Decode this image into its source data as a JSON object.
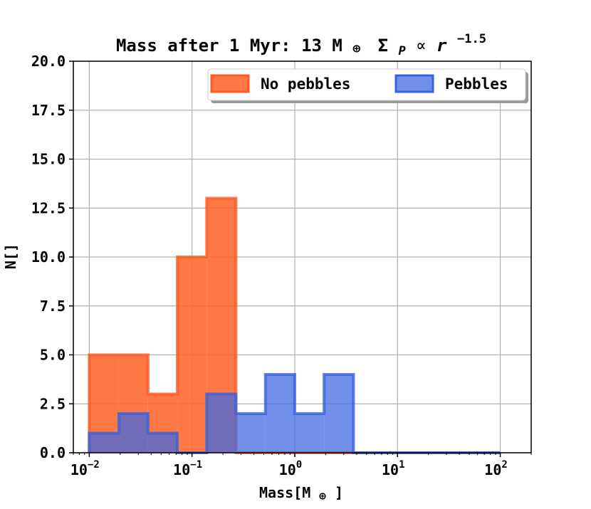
{
  "chart_data": {
    "type": "histogram",
    "title_prefix": "Mass after 1 Myr: 13 M",
    "title_sym": "⊕",
    "title_sigma": "Σ",
    "title_sub": "P",
    "title_prop": "∝",
    "title_r": "r",
    "title_exp": "−1.5",
    "xlabel_prefix": "Mass[M",
    "xlabel_sym": "⊕",
    "xlabel_suffix": "]",
    "ylabel": "N[]",
    "xscale": "log",
    "xlim": [
      0.007,
      200
    ],
    "ylim": [
      0,
      20
    ],
    "yticks": [
      "0.0",
      "2.5",
      "5.0",
      "7.5",
      "10.0",
      "12.5",
      "15.0",
      "17.5",
      "20.0"
    ],
    "xticks": [
      {
        "base": "10",
        "exp": "−2",
        "value": 0.01
      },
      {
        "base": "10",
        "exp": "−1",
        "value": 0.1
      },
      {
        "base": "10",
        "exp": "0",
        "value": 1
      },
      {
        "base": "10",
        "exp": "1",
        "value": 10
      },
      {
        "base": "10",
        "exp": "2",
        "value": 100
      }
    ],
    "bin_edges": [
      0.01,
      0.0194,
      0.0373,
      0.072,
      0.139,
      0.268,
      0.518,
      1.0,
      1.93,
      3.73,
      7.2,
      13.9,
      26.8,
      51.8,
      100
    ],
    "grid": true,
    "legend_position": "top-right",
    "series": [
      {
        "name": "No pebbles",
        "fill": "#ff6a33",
        "edge": "#ff5a1f",
        "counts": [
          5,
          5,
          3,
          10,
          13,
          0,
          0,
          0,
          0,
          0,
          0,
          0,
          0,
          0
        ]
      },
      {
        "name": "Pebbles",
        "fill": "#4169e1",
        "edge": "#3a62e0",
        "counts": [
          1,
          2,
          1,
          0,
          3,
          2,
          4,
          2,
          4,
          0,
          0,
          0,
          0,
          0
        ]
      }
    ]
  }
}
